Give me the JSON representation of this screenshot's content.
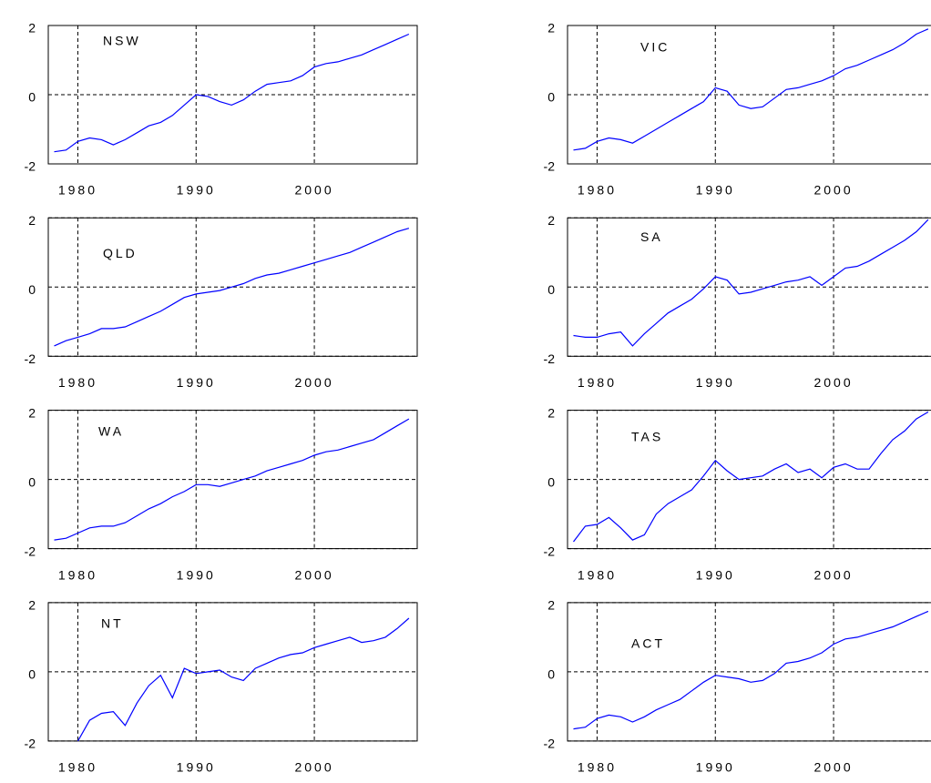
{
  "chart_data": [
    {
      "type": "line",
      "title": "NSW",
      "x": [
        1978,
        1979,
        1980,
        1981,
        1982,
        1983,
        1984,
        1985,
        1986,
        1987,
        1988,
        1989,
        1990,
        1991,
        1992,
        1993,
        1994,
        1995,
        1996,
        1997,
        1998,
        1999,
        2000,
        2001,
        2002,
        2003,
        2004,
        2005,
        2006,
        2007,
        2008
      ],
      "series": [
        {
          "color": "#0000ff",
          "values": [
            -1.65,
            -1.6,
            -1.35,
            -1.25,
            -1.3,
            -1.45,
            -1.3,
            -1.1,
            -0.9,
            -0.8,
            -0.6,
            -0.3,
            0.0,
            -0.05,
            -0.2,
            -0.3,
            -0.15,
            0.1,
            0.3,
            0.35,
            0.4,
            0.55,
            0.8,
            0.9,
            0.95,
            1.05,
            1.15,
            1.3,
            1.45,
            1.6,
            1.75
          ]
        }
      ],
      "xlim": [
        1977.5,
        2008.7
      ],
      "ylim": [
        -2,
        2
      ],
      "xticks": [
        1980,
        1990,
        2000
      ],
      "yticks": [
        -2,
        0,
        2
      ],
      "grid": true
    },
    {
      "type": "line",
      "title": "VIC",
      "x": [
        1978,
        1979,
        1980,
        1981,
        1982,
        1983,
        1984,
        1985,
        1986,
        1987,
        1988,
        1989,
        1990,
        1991,
        1992,
        1993,
        1994,
        1995,
        1996,
        1997,
        1998,
        1999,
        2000,
        2001,
        2002,
        2003,
        2004,
        2005,
        2006,
        2007,
        2008
      ],
      "series": [
        {
          "color": "#0000ff",
          "values": [
            -1.6,
            -1.55,
            -1.35,
            -1.25,
            -1.3,
            -1.4,
            -1.2,
            -1.0,
            -0.8,
            -0.6,
            -0.4,
            -0.2,
            0.2,
            0.1,
            -0.3,
            -0.4,
            -0.35,
            -0.1,
            0.15,
            0.2,
            0.3,
            0.4,
            0.55,
            0.75,
            0.85,
            1.0,
            1.15,
            1.3,
            1.5,
            1.75,
            1.9
          ]
        }
      ],
      "xlim": [
        1977.5,
        2008.7
      ],
      "ylim": [
        -2,
        2
      ],
      "xticks": [
        1980,
        1990,
        2000
      ],
      "yticks": [
        -2,
        0,
        2
      ],
      "grid": true
    },
    {
      "type": "line",
      "title": "QLD",
      "x": [
        1978,
        1979,
        1980,
        1981,
        1982,
        1983,
        1984,
        1985,
        1986,
        1987,
        1988,
        1989,
        1990,
        1991,
        1992,
        1993,
        1994,
        1995,
        1996,
        1997,
        1998,
        1999,
        2000,
        2001,
        2002,
        2003,
        2004,
        2005,
        2006,
        2007,
        2008
      ],
      "series": [
        {
          "color": "#0000ff",
          "values": [
            -1.7,
            -1.55,
            -1.45,
            -1.35,
            -1.2,
            -1.2,
            -1.15,
            -1.0,
            -0.85,
            -0.7,
            -0.5,
            -0.3,
            -0.2,
            -0.15,
            -0.1,
            0.0,
            0.1,
            0.25,
            0.35,
            0.4,
            0.5,
            0.6,
            0.7,
            0.8,
            0.9,
            1.0,
            1.15,
            1.3,
            1.45,
            1.6,
            1.7
          ]
        }
      ],
      "xlim": [
        1977.5,
        2008.7
      ],
      "ylim": [
        -2,
        2
      ],
      "xticks": [
        1980,
        1990,
        2000
      ],
      "yticks": [
        -2,
        0,
        2
      ],
      "grid": true
    },
    {
      "type": "line",
      "title": "SA",
      "x": [
        1978,
        1979,
        1980,
        1981,
        1982,
        1983,
        1984,
        1985,
        1986,
        1987,
        1988,
        1989,
        1990,
        1991,
        1992,
        1993,
        1994,
        1995,
        1996,
        1997,
        1998,
        1999,
        2000,
        2001,
        2002,
        2003,
        2004,
        2005,
        2006,
        2007,
        2008
      ],
      "series": [
        {
          "color": "#0000ff",
          "values": [
            -1.4,
            -1.45,
            -1.45,
            -1.35,
            -1.3,
            -1.7,
            -1.35,
            -1.05,
            -0.75,
            -0.55,
            -0.35,
            -0.05,
            0.3,
            0.2,
            -0.2,
            -0.15,
            -0.05,
            0.05,
            0.15,
            0.2,
            0.3,
            0.05,
            0.3,
            0.55,
            0.6,
            0.75,
            0.95,
            1.15,
            1.35,
            1.6,
            1.95
          ]
        }
      ],
      "xlim": [
        1977.5,
        2008.7
      ],
      "ylim": [
        -2,
        2
      ],
      "xticks": [
        1980,
        1990,
        2000
      ],
      "yticks": [
        -2,
        0,
        2
      ],
      "grid": true
    },
    {
      "type": "line",
      "title": "WA",
      "x": [
        1978,
        1979,
        1980,
        1981,
        1982,
        1983,
        1984,
        1985,
        1986,
        1987,
        1988,
        1989,
        1990,
        1991,
        1992,
        1993,
        1994,
        1995,
        1996,
        1997,
        1998,
        1999,
        2000,
        2001,
        2002,
        2003,
        2004,
        2005,
        2006,
        2007,
        2008
      ],
      "series": [
        {
          "color": "#0000ff",
          "values": [
            -1.75,
            -1.7,
            -1.55,
            -1.4,
            -1.35,
            -1.35,
            -1.25,
            -1.05,
            -0.85,
            -0.7,
            -0.5,
            -0.35,
            -0.15,
            -0.15,
            -0.2,
            -0.1,
            0.0,
            0.1,
            0.25,
            0.35,
            0.45,
            0.55,
            0.7,
            0.8,
            0.85,
            0.95,
            1.05,
            1.15,
            1.35,
            1.55,
            1.75
          ]
        }
      ],
      "xlim": [
        1977.5,
        2008.7
      ],
      "ylim": [
        -2,
        2
      ],
      "xticks": [
        1980,
        1990,
        2000
      ],
      "yticks": [
        -2,
        0,
        2
      ],
      "grid": true
    },
    {
      "type": "line",
      "title": "TAS",
      "x": [
        1978,
        1979,
        1980,
        1981,
        1982,
        1983,
        1984,
        1985,
        1986,
        1987,
        1988,
        1989,
        1990,
        1991,
        1992,
        1993,
        1994,
        1995,
        1996,
        1997,
        1998,
        1999,
        2000,
        2001,
        2002,
        2003,
        2004,
        2005,
        2006,
        2007,
        2008
      ],
      "series": [
        {
          "color": "#0000ff",
          "values": [
            -1.8,
            -1.35,
            -1.3,
            -1.1,
            -1.4,
            -1.75,
            -1.6,
            -1.0,
            -0.7,
            -0.5,
            -0.3,
            0.1,
            0.55,
            0.25,
            0.0,
            0.05,
            0.1,
            0.3,
            0.45,
            0.2,
            0.3,
            0.05,
            0.35,
            0.45,
            0.3,
            0.3,
            0.75,
            1.15,
            1.4,
            1.75,
            1.95
          ]
        }
      ],
      "xlim": [
        1977.5,
        2008.7
      ],
      "ylim": [
        -2,
        2
      ],
      "xticks": [
        1980,
        1990,
        2000
      ],
      "yticks": [
        -2,
        0,
        2
      ],
      "grid": true
    },
    {
      "type": "line",
      "title": "NT",
      "x": [
        1978,
        1979,
        1980,
        1981,
        1982,
        1983,
        1984,
        1985,
        1986,
        1987,
        1988,
        1989,
        1990,
        1991,
        1992,
        1993,
        1994,
        1995,
        1996,
        1997,
        1998,
        1999,
        2000,
        2001,
        2002,
        2003,
        2004,
        2005,
        2006,
        2007,
        2008
      ],
      "series": [
        {
          "color": "#0000ff",
          "values": [
            null,
            null,
            -2.0,
            -1.4,
            -1.2,
            -1.15,
            -1.55,
            -0.9,
            -0.4,
            -0.1,
            -0.75,
            0.1,
            -0.05,
            0.0,
            0.05,
            -0.15,
            -0.25,
            0.1,
            0.25,
            0.4,
            0.5,
            0.55,
            0.7,
            0.8,
            0.9,
            1.0,
            0.85,
            0.9,
            1.0,
            1.25,
            1.55
          ]
        }
      ],
      "xlim": [
        1977.5,
        2008.7
      ],
      "ylim": [
        -2,
        2
      ],
      "xticks": [
        1980,
        1990,
        2000
      ],
      "yticks": [
        -2,
        0,
        2
      ],
      "grid": true
    },
    {
      "type": "line",
      "title": "ACT",
      "x": [
        1978,
        1979,
        1980,
        1981,
        1982,
        1983,
        1984,
        1985,
        1986,
        1987,
        1988,
        1989,
        1990,
        1991,
        1992,
        1993,
        1994,
        1995,
        1996,
        1997,
        1998,
        1999,
        2000,
        2001,
        2002,
        2003,
        2004,
        2005,
        2006,
        2007,
        2008
      ],
      "series": [
        {
          "color": "#0000ff",
          "values": [
            -1.65,
            -1.6,
            -1.35,
            -1.25,
            -1.3,
            -1.45,
            -1.3,
            -1.1,
            -0.95,
            -0.8,
            -0.55,
            -0.3,
            -0.1,
            -0.15,
            -0.2,
            -0.3,
            -0.25,
            -0.05,
            0.25,
            0.3,
            0.4,
            0.55,
            0.8,
            0.95,
            1.0,
            1.1,
            1.2,
            1.3,
            1.45,
            1.6,
            1.75
          ]
        }
      ],
      "xlim": [
        1977.5,
        2008.7
      ],
      "ylim": [
        -2,
        2
      ],
      "xticks": [
        1980,
        1990,
        2000
      ],
      "yticks": [
        -2,
        0,
        2
      ],
      "grid": true
    }
  ]
}
